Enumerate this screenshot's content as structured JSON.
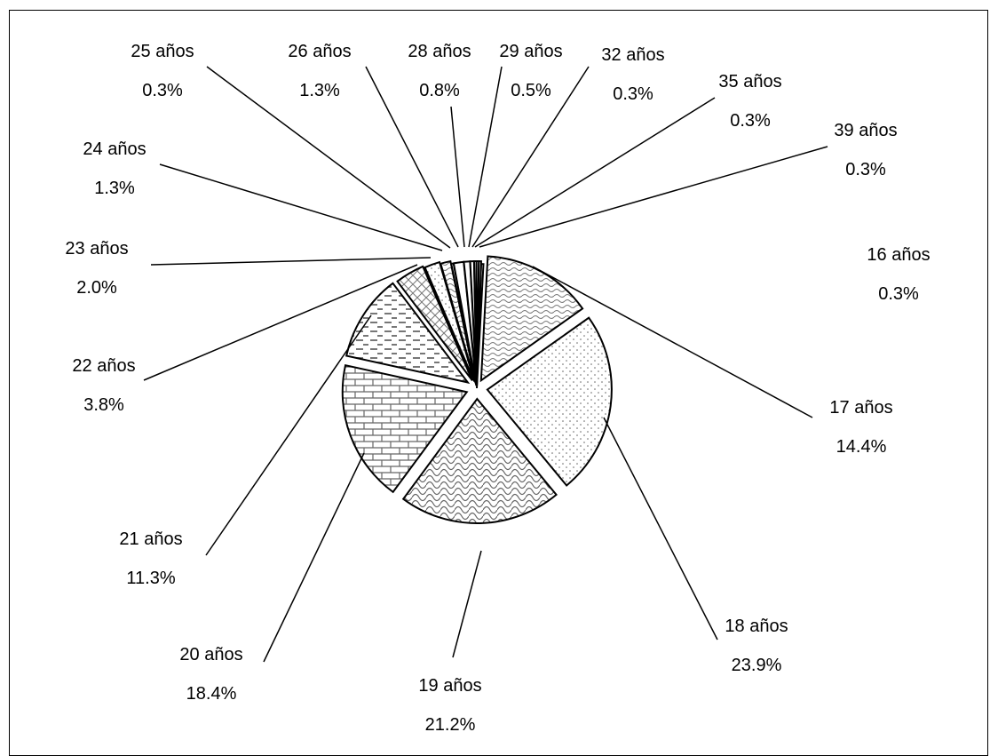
{
  "chart_data": {
    "type": "pie",
    "title": "",
    "legend": "none",
    "slices": [
      {
        "label": "16 años",
        "percent": "0.3%",
        "value": 0.3
      },
      {
        "label": "17 años",
        "percent": "14.4%",
        "value": 14.4
      },
      {
        "label": "18 años",
        "percent": "23.9%",
        "value": 23.9
      },
      {
        "label": "19 años",
        "percent": "21.2%",
        "value": 21.2
      },
      {
        "label": "20 años",
        "percent": "18.4%",
        "value": 18.4
      },
      {
        "label": "21 años",
        "percent": "11.3%",
        "value": 11.3
      },
      {
        "label": "22 años",
        "percent": "3.8%",
        "value": 3.8
      },
      {
        "label": "23 años",
        "percent": "2.0%",
        "value": 2.0
      },
      {
        "label": "24 años",
        "percent": "1.3%",
        "value": 1.3
      },
      {
        "label": "25 años",
        "percent": "0.3%",
        "value": 0.3
      },
      {
        "label": "26 años",
        "percent": "1.3%",
        "value": 1.3
      },
      {
        "label": "28 años",
        "percent": "0.8%",
        "value": 0.8
      },
      {
        "label": "29 años",
        "percent": "0.5%",
        "value": 0.5
      },
      {
        "label": "32 años",
        "percent": "0.3%",
        "value": 0.3
      },
      {
        "label": "35 años",
        "percent": "0.3%",
        "value": 0.3
      },
      {
        "label": "39 años",
        "percent": "0.3%",
        "value": 0.3
      }
    ]
  }
}
